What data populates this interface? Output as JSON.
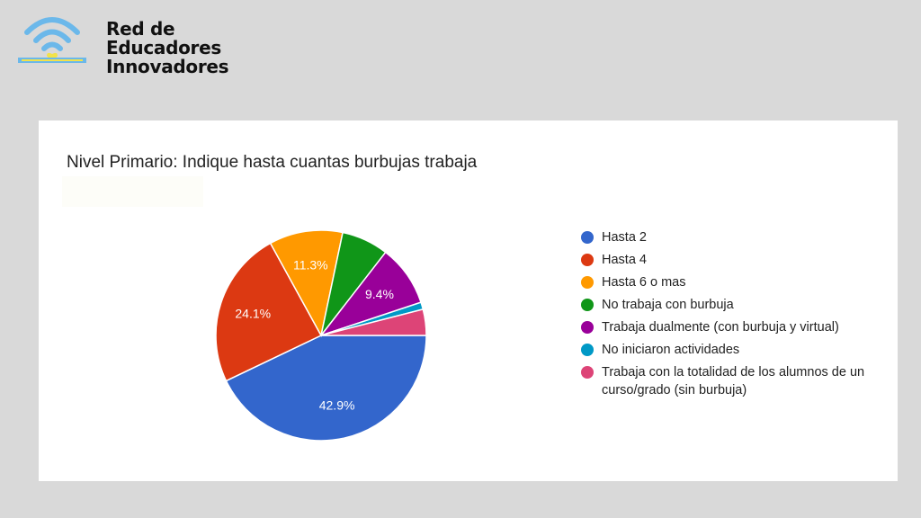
{
  "logo": {
    "text_lines": [
      "Red de",
      "Educadores",
      "Innovadores"
    ]
  },
  "chart_data": {
    "type": "pie",
    "title": "Nivel Primario: Indique hasta cuantas burbujas trabaja",
    "categories": [
      "Hasta 2",
      "Hasta 4",
      "Hasta 6 o mas",
      "No trabaja con burbuja",
      "Trabaja dualmente (con burbuja y virtual)",
      "No iniciaron actividades",
      "Trabaja con la totalidad de los alumnos de un curso/grado (sin burbuja)"
    ],
    "values": [
      42.9,
      24.1,
      11.3,
      7.2,
      9.4,
      1.1,
      4.0
    ],
    "data_labels": [
      "42.9%",
      "24.1%",
      "11.3%",
      "",
      "9.4%",
      "",
      ""
    ],
    "colors": [
      "#3366cc",
      "#dc3912",
      "#ff9900",
      "#109618",
      "#990099",
      "#0099c6",
      "#dd4477"
    ],
    "legend_position": "right"
  }
}
